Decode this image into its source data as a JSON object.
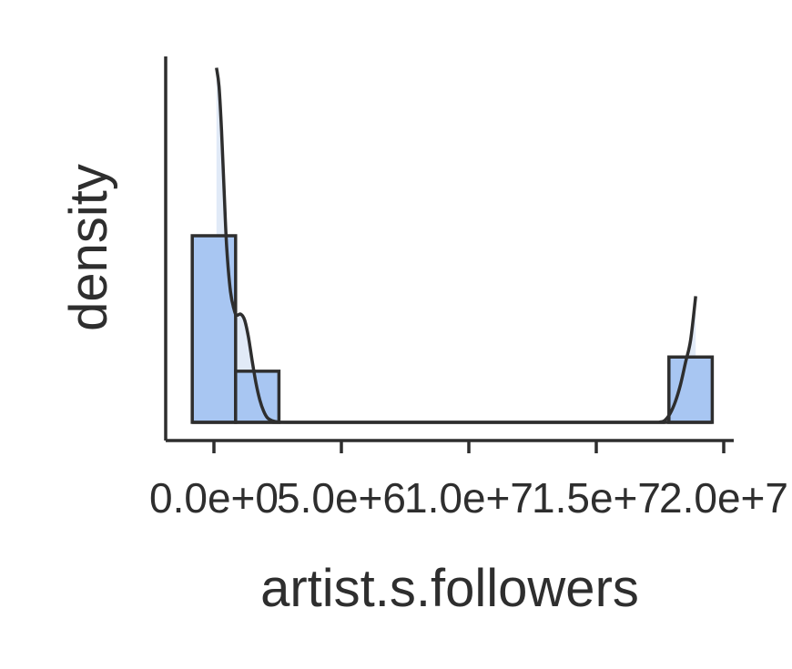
{
  "chart_data": {
    "type": "bar",
    "xlabel": "artist.s.followers",
    "ylabel": "density",
    "xlim": [
      -1000000,
      20500000
    ],
    "ylim": [
      0,
      1.0
    ],
    "x_ticks": [
      0,
      5000000,
      10000000,
      15000000,
      20000000
    ],
    "x_tick_labels": [
      "0.0e+0",
      "5.0e+6",
      "1.0e+7",
      "1.5e+7",
      "2.0e+7"
    ],
    "y_ticks_shown": false,
    "grid": false,
    "legend": "none",
    "histogram": {
      "bin_edges": [
        -850000,
        850000,
        2550000,
        17850000,
        19550000
      ],
      "bins": [
        {
          "x0": -850000,
          "x1": 850000,
          "density": 0.5
        },
        {
          "x0": 850000,
          "x1": 2550000,
          "density": 0.137
        },
        {
          "x0": 17850000,
          "x1": 19550000,
          "density": 0.175
        }
      ]
    },
    "kde": {
      "x": [
        100000,
        200000,
        300000,
        400000,
        500000,
        650000,
        800000,
        900000,
        1050000,
        1200000,
        1350000,
        1500000,
        1650000,
        1800000,
        1950000,
        2100000,
        2300000,
        2500000,
        3000000,
        10000000,
        17000000,
        17500000,
        17700000,
        17900000,
        18100000,
        18300000,
        18500000,
        18700000,
        18900000
      ],
      "y": [
        0.95,
        0.9,
        0.78,
        0.62,
        0.47,
        0.35,
        0.3,
        0.287,
        0.29,
        0.275,
        0.23,
        0.165,
        0.105,
        0.06,
        0.03,
        0.012,
        0.004,
        0.001,
        0.0,
        0.0,
        0.0,
        0.001,
        0.006,
        0.024,
        0.055,
        0.1,
        0.16,
        0.22,
        0.338
      ]
    },
    "colors": {
      "bar_fill": "#a8c6f2",
      "kde_fill": "#c9d8f0",
      "line": "#2e2e2e"
    }
  }
}
